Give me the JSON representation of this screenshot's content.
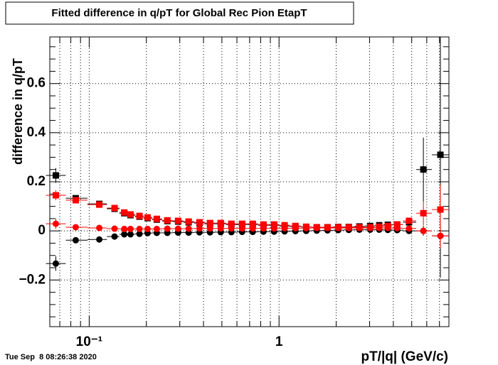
{
  "chart_data": {
    "type": "scatter",
    "title": "Fitted difference in q/pT for Global Rec Pion EtapT",
    "x_label": "pT/|q| (GeV/c)",
    "y_label": "difference in q/pT",
    "annotations": [
      "Tue Sep  8 08:26:38 2020"
    ],
    "log_x": true,
    "grid": true,
    "xlim": [
      0.062,
      7.85
    ],
    "ylim": [
      -0.39,
      0.79
    ],
    "xticks": [
      {
        "value": 0.1,
        "label": "10⁻¹"
      },
      1
    ],
    "xminor": [
      0.07,
      0.08,
      0.09,
      0.2,
      0.3,
      0.4,
      0.5,
      0.6,
      0.7,
      0.8,
      0.9,
      2,
      3,
      4,
      5,
      6,
      7
    ],
    "yticks": [
      {
        "value": -0.2,
        "label": "−0.2"
      },
      0,
      0.2,
      0.4,
      0.6
    ],
    "yminor": [
      -0.35,
      -0.3,
      -0.25,
      -0.15,
      -0.1,
      -0.05,
      0.05,
      0.1,
      0.15,
      0.25,
      0.3,
      0.35,
      0.45,
      0.5,
      0.55,
      0.65,
      0.7,
      0.75
    ],
    "x": [
      0.0667,
      0.0849,
      0.113,
      0.136,
      0.153,
      0.165,
      0.184,
      0.203,
      0.227,
      0.258,
      0.294,
      0.334,
      0.381,
      0.433,
      0.493,
      0.561,
      0.639,
      0.727,
      0.828,
      0.942,
      1.07,
      1.22,
      1.39,
      1.58,
      1.8,
      2.05,
      2.33,
      2.65,
      3.02,
      3.37,
      3.74,
      4.19,
      4.84,
      5.76,
      7.08
    ],
    "series": [
      {
        "color": "#000000",
        "marker": "circle",
        "values": [
          -0.133,
          -0.038,
          -0.035,
          -0.023,
          -0.014,
          -0.014,
          -0.012,
          -0.009,
          -0.008,
          -0.008,
          -0.007,
          -0.007,
          -0.006,
          -0.006,
          -0.005,
          -0.005,
          -0.004,
          -0.004,
          -0.003,
          -0.003,
          -0.002,
          -0.001,
          0.0,
          0.001,
          0.002,
          0.003,
          0.004,
          0.005,
          0.005,
          0.005,
          0.004,
          0.003,
          0.0,
          0.0,
          -0.02
        ],
        "errors": [
          0.03,
          0.008,
          0.005,
          0.004,
          0.003,
          0.003,
          0.003,
          0.003,
          0.003,
          0.003,
          0.003,
          0.003,
          0.003,
          0.003,
          0.003,
          0.003,
          0.003,
          0.003,
          0.003,
          0.003,
          0.003,
          0.003,
          0.003,
          0.003,
          0.003,
          0.003,
          0.003,
          0.003,
          0.003,
          0.004,
          0.005,
          0.006,
          0.01,
          0.02,
          0.04
        ]
      },
      {
        "color": "#000000",
        "marker": "square",
        "values": [
          0.226,
          0.133,
          0.11,
          0.09,
          0.072,
          0.064,
          0.058,
          0.052,
          0.046,
          0.04,
          0.038,
          0.035,
          0.032,
          0.029,
          0.029,
          0.026,
          0.026,
          0.026,
          0.023,
          0.023,
          0.02,
          0.018,
          0.016,
          0.015,
          0.015,
          0.016,
          0.016,
          0.018,
          0.02,
          0.023,
          0.025,
          0.026,
          0.035,
          0.25,
          0.31
        ],
        "errors": [
          0.03,
          0.01,
          0.008,
          0.006,
          0.004,
          0.004,
          0.004,
          0.004,
          0.003,
          0.003,
          0.003,
          0.003,
          0.003,
          0.003,
          0.003,
          0.003,
          0.003,
          0.003,
          0.003,
          0.003,
          0.003,
          0.003,
          0.003,
          0.003,
          0.003,
          0.003,
          0.003,
          0.003,
          0.004,
          0.005,
          0.006,
          0.008,
          0.012,
          0.13,
          0.5
        ]
      },
      {
        "color": "#ff0000",
        "marker": "circle",
        "values": [
          0.029,
          0.015,
          0.012,
          0.009,
          0.008,
          0.008,
          0.008,
          0.008,
          0.008,
          0.009,
          0.009,
          0.009,
          0.01,
          0.01,
          0.01,
          0.01,
          0.01,
          0.01,
          0.01,
          0.01,
          0.011,
          0.011,
          0.011,
          0.012,
          0.012,
          0.012,
          0.012,
          0.012,
          0.012,
          0.012,
          0.012,
          0.011,
          0.01,
          0.0,
          -0.02
        ],
        "errors": [
          0.02,
          0.006,
          0.004,
          0.003,
          0.003,
          0.003,
          0.003,
          0.003,
          0.003,
          0.003,
          0.003,
          0.003,
          0.003,
          0.003,
          0.003,
          0.003,
          0.003,
          0.003,
          0.003,
          0.003,
          0.003,
          0.003,
          0.003,
          0.003,
          0.003,
          0.003,
          0.003,
          0.003,
          0.003,
          0.004,
          0.005,
          0.006,
          0.008,
          0.02,
          0.05
        ]
      },
      {
        "color": "#ff0000",
        "marker": "square",
        "values": [
          0.145,
          0.125,
          0.107,
          0.093,
          0.075,
          0.067,
          0.061,
          0.055,
          0.049,
          0.043,
          0.041,
          0.038,
          0.035,
          0.032,
          0.032,
          0.029,
          0.029,
          0.029,
          0.026,
          0.026,
          0.023,
          0.02,
          0.017,
          0.015,
          0.015,
          0.015,
          0.015,
          0.015,
          0.015,
          0.017,
          0.02,
          0.026,
          0.041,
          0.072,
          0.087
        ],
        "errors": [
          0.02,
          0.01,
          0.008,
          0.006,
          0.004,
          0.004,
          0.004,
          0.004,
          0.003,
          0.003,
          0.003,
          0.003,
          0.003,
          0.003,
          0.003,
          0.003,
          0.003,
          0.003,
          0.003,
          0.003,
          0.003,
          0.003,
          0.003,
          0.003,
          0.003,
          0.003,
          0.003,
          0.003,
          0.004,
          0.005,
          0.006,
          0.008,
          0.012,
          0.05,
          0.1
        ]
      }
    ]
  }
}
